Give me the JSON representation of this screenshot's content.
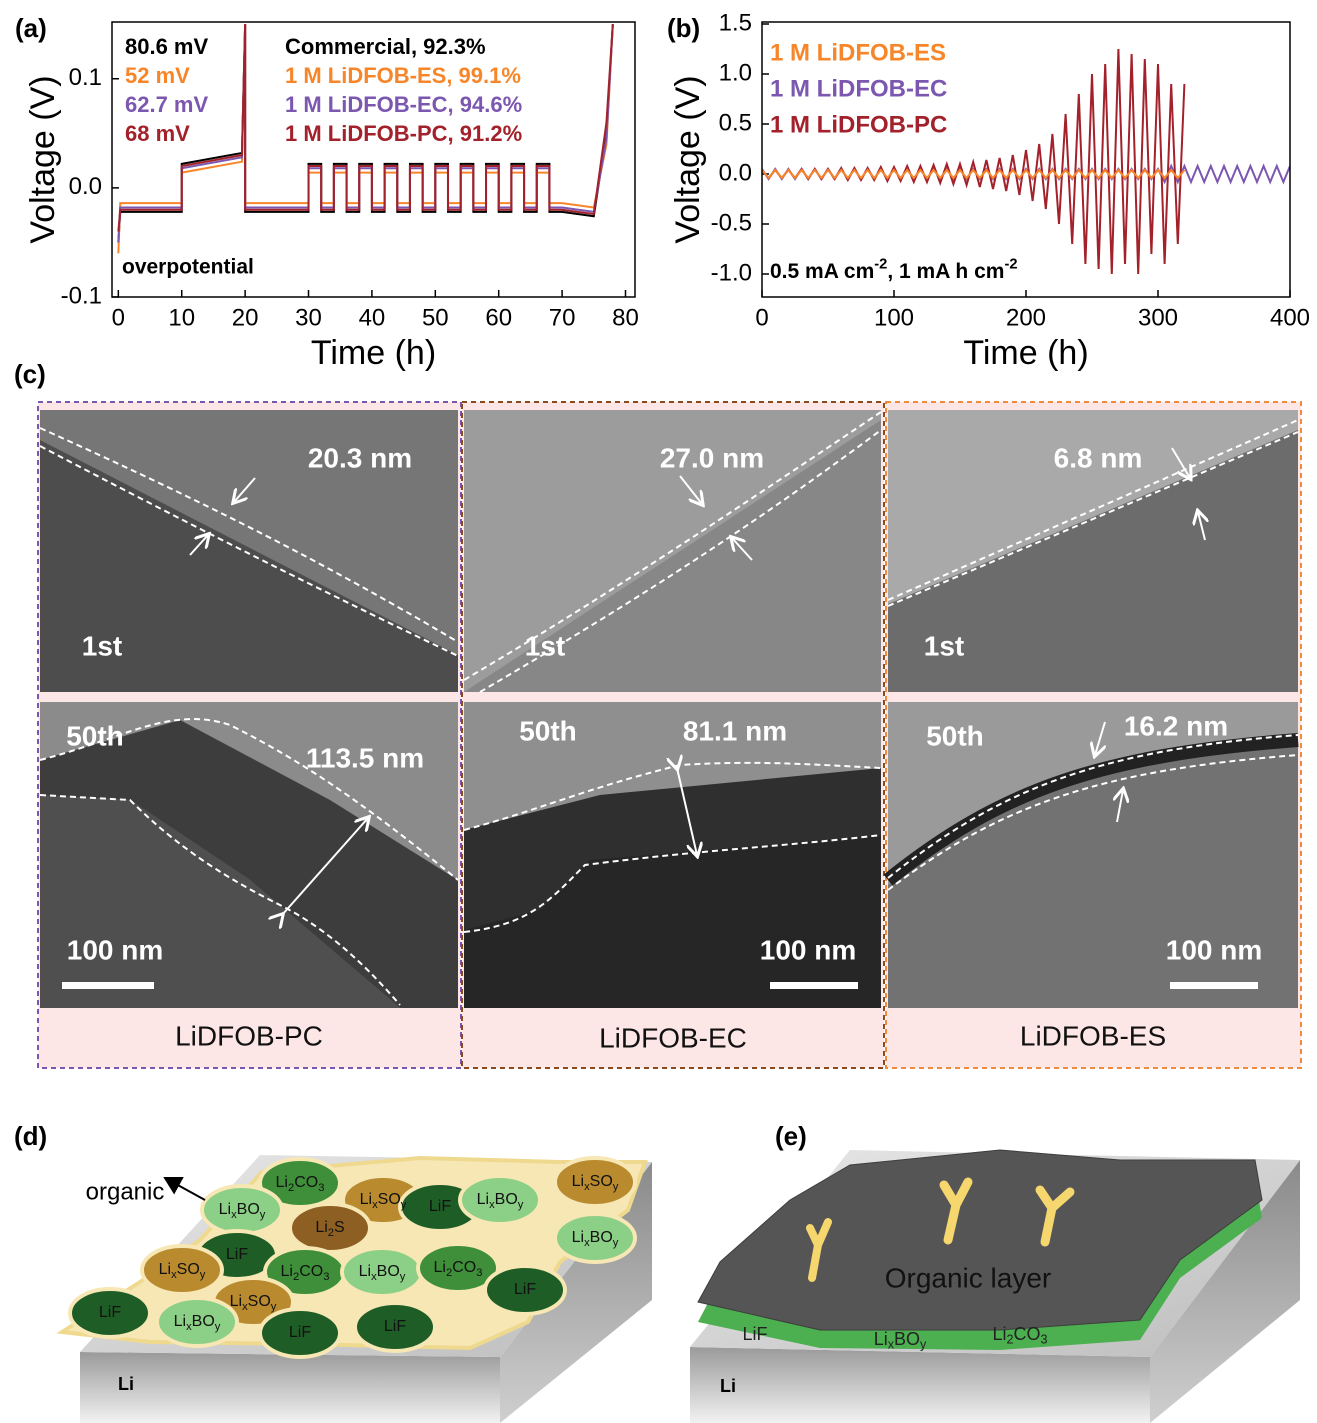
{
  "chart_data": [
    {
      "type": "line",
      "label": "(a)",
      "xlabel": "Time (h)",
      "ylabel": "Voltage (V)",
      "xlim": [
        -1,
        81.5
      ],
      "ylim": [
        -0.1,
        0.152
      ],
      "xticks": [
        0,
        10,
        20,
        30,
        40,
        50,
        60,
        70,
        80
      ],
      "yticks": [
        -0.1,
        {
          "value": 0,
          "label": "0.0"
        },
        0.1
      ],
      "x": [
        0,
        0.3,
        10,
        10,
        19.5,
        20,
        20,
        30,
        30,
        32,
        32,
        34,
        34,
        36,
        36,
        38,
        38,
        40,
        40,
        42,
        42,
        44,
        44,
        46,
        46,
        48,
        48,
        50,
        50,
        52,
        52,
        54,
        54,
        56,
        56,
        58,
        58,
        60,
        60,
        62,
        62,
        64,
        64,
        66,
        66,
        68,
        68,
        70,
        70,
        75,
        77,
        78
      ],
      "series": [
        {
          "name": "Commercial, 92.3%",
          "color": "#000000",
          "values": [
            -0.05,
            -0.022,
            -0.022,
            0.022,
            0.032,
            0.15,
            -0.022,
            -0.022,
            0.022,
            0.022,
            -0.022,
            -0.022,
            0.022,
            0.022,
            -0.022,
            -0.022,
            0.022,
            0.022,
            -0.022,
            -0.022,
            0.022,
            0.022,
            -0.022,
            -0.022,
            0.022,
            0.022,
            -0.022,
            -0.022,
            0.022,
            0.022,
            -0.022,
            -0.022,
            0.022,
            0.022,
            -0.022,
            -0.022,
            0.022,
            0.022,
            -0.022,
            -0.022,
            0.022,
            0.022,
            -0.022,
            -0.022,
            0.022,
            0.022,
            -0.022,
            -0.022,
            -0.022,
            -0.026,
            0.05,
            0.15
          ]
        },
        {
          "name": "1 M LiDFOB-ES, 99.1%",
          "color": "#f7862a",
          "values": [
            -0.06,
            -0.014,
            -0.014,
            0.014,
            0.024,
            0.15,
            -0.014,
            -0.014,
            0.014,
            0.014,
            -0.014,
            -0.014,
            0.014,
            0.014,
            -0.014,
            -0.014,
            0.014,
            0.014,
            -0.014,
            -0.014,
            0.014,
            0.014,
            -0.014,
            -0.014,
            0.014,
            0.014,
            -0.014,
            -0.014,
            0.014,
            0.014,
            -0.014,
            -0.014,
            0.014,
            0.014,
            -0.014,
            -0.014,
            0.014,
            0.014,
            -0.014,
            -0.014,
            0.014,
            0.014,
            -0.014,
            -0.014,
            0.014,
            0.014,
            -0.014,
            -0.014,
            -0.014,
            -0.018,
            0.04,
            0.15
          ]
        },
        {
          "name": "1 M LiDFOB-EC, 94.6%",
          "color": "#7b57b0",
          "values": [
            -0.05,
            -0.018,
            -0.018,
            0.018,
            0.028,
            0.15,
            -0.018,
            -0.018,
            0.018,
            0.018,
            -0.018,
            -0.018,
            0.018,
            0.018,
            -0.018,
            -0.018,
            0.018,
            0.018,
            -0.018,
            -0.018,
            0.018,
            0.018,
            -0.018,
            -0.018,
            0.018,
            0.018,
            -0.018,
            -0.018,
            0.018,
            0.018,
            -0.018,
            -0.018,
            0.018,
            0.018,
            -0.018,
            -0.018,
            0.018,
            0.018,
            -0.018,
            -0.018,
            0.018,
            0.018,
            -0.018,
            -0.018,
            0.018,
            0.018,
            -0.018,
            -0.018,
            -0.018,
            -0.022,
            0.045,
            0.15
          ]
        },
        {
          "name": "1 M LiDFOB-PC, 91.2%",
          "color": "#a3212a",
          "values": [
            -0.04,
            -0.02,
            -0.02,
            0.02,
            0.03,
            0.15,
            -0.02,
            -0.02,
            0.02,
            0.02,
            -0.02,
            -0.02,
            0.02,
            0.02,
            -0.02,
            -0.02,
            0.02,
            0.02,
            -0.02,
            -0.02,
            0.02,
            0.02,
            -0.02,
            -0.02,
            0.02,
            0.02,
            -0.02,
            -0.02,
            0.02,
            0.02,
            -0.02,
            -0.02,
            0.02,
            0.02,
            -0.02,
            -0.02,
            0.02,
            0.02,
            -0.02,
            -0.02,
            0.02,
            0.02,
            -0.02,
            -0.02,
            0.02,
            0.02,
            -0.02,
            -0.02,
            -0.02,
            -0.024,
            0.06,
            0.15
          ]
        }
      ],
      "annotations": [
        {
          "text": "80.6 mV",
          "color": "#000000"
        },
        {
          "text": "52 mV",
          "color": "#f7862a"
        },
        {
          "text": "62.7 mV",
          "color": "#7b57b0"
        },
        {
          "text": "68 mV",
          "color": "#a3212a"
        }
      ],
      "annotation_text": "overpotential"
    },
    {
      "type": "line",
      "label": "(b)",
      "xlabel": "Time (h)",
      "ylabel": "Voltage (V)",
      "xlim": [
        0,
        400
      ],
      "ylim": [
        -1.23,
        1.52
      ],
      "xticks": [
        0,
        100,
        200,
        300,
        400
      ],
      "yticks": [
        {
          "value": -1,
          "label": "-1.0"
        },
        -0.5,
        {
          "value": 0,
          "label": "0.0"
        },
        0.5,
        {
          "value": 1,
          "label": "1.0"
        },
        1.5
      ],
      "x": [
        0,
        5,
        10,
        15,
        20,
        25,
        30,
        35,
        40,
        45,
        50,
        55,
        60,
        65,
        70,
        75,
        80,
        85,
        90,
        95,
        100,
        105,
        110,
        115,
        120,
        125,
        130,
        135,
        140,
        145,
        150,
        155,
        160,
        165,
        170,
        175,
        180,
        185,
        190,
        195,
        200,
        205,
        210,
        215,
        220,
        225,
        230,
        235,
        240,
        245,
        250,
        255,
        260,
        265,
        270,
        275,
        280,
        285,
        290,
        295,
        300,
        305,
        310,
        315,
        320,
        325,
        330,
        335,
        340,
        345,
        350,
        355,
        360,
        365,
        370,
        375,
        380,
        385,
        390,
        395,
        400
      ],
      "series": [
        {
          "name": "1 M LiDFOB-EC",
          "color": "#7b57b0",
          "values": [
            0.05,
            -0.05,
            0.05,
            -0.05,
            0.05,
            -0.05,
            0.05,
            -0.05,
            0.05,
            -0.05,
            0.05,
            -0.05,
            0.05,
            -0.05,
            0.05,
            -0.05,
            0.05,
            -0.05,
            0.05,
            -0.05,
            0.05,
            -0.05,
            0.05,
            -0.05,
            0.05,
            -0.05,
            0.05,
            -0.05,
            0.05,
            -0.05,
            0.05,
            -0.05,
            0.05,
            -0.05,
            0.05,
            -0.05,
            0.05,
            -0.05,
            0.05,
            -0.05,
            0.05,
            -0.05,
            0.05,
            -0.05,
            0.05,
            -0.05,
            0.05,
            -0.05,
            0.05,
            -0.05,
            0.05,
            -0.05,
            0.05,
            -0.05,
            0.05,
            -0.05,
            0.05,
            -0.05,
            0.05,
            -0.05,
            0.05,
            -0.08,
            0.08,
            -0.08,
            0.08,
            -0.08,
            0.08,
            -0.08,
            0.08,
            -0.08,
            0.08,
            -0.08,
            0.08,
            -0.08,
            0.08,
            -0.08,
            0.08,
            -0.08,
            0.08,
            -0.08,
            0.08
          ]
        },
        {
          "name": "1 M LiDFOB-PC",
          "color": "#a3212a",
          "values": [
            0.04,
            -0.04,
            0.04,
            -0.04,
            0.04,
            -0.04,
            0.05,
            -0.05,
            0.05,
            -0.05,
            0.05,
            -0.05,
            0.06,
            -0.06,
            0.06,
            -0.06,
            0.06,
            -0.06,
            0.07,
            -0.07,
            0.07,
            -0.07,
            0.08,
            -0.08,
            0.08,
            -0.08,
            0.09,
            -0.09,
            0.1,
            -0.1,
            0.1,
            -0.11,
            0.12,
            -0.13,
            0.14,
            -0.15,
            0.16,
            -0.17,
            0.19,
            -0.21,
            0.24,
            -0.27,
            0.3,
            -0.35,
            0.4,
            -0.5,
            0.6,
            -0.7,
            0.8,
            -0.9,
            1.0,
            -0.95,
            1.1,
            -1.0,
            1.25,
            -0.9,
            1.2,
            -1.0,
            1.15,
            -0.8,
            1.1,
            -0.9,
            0.9,
            -0.7,
            0.9,
            null,
            null,
            null,
            null,
            null,
            null,
            null,
            null,
            null,
            null,
            null,
            null,
            null,
            null,
            null,
            null
          ]
        },
        {
          "name": "1 M LiDFOB-ES",
          "color": "#f7862a",
          "values": [
            0.04,
            -0.04,
            0.04,
            -0.04,
            0.04,
            -0.04,
            0.04,
            -0.04,
            0.04,
            -0.04,
            0.04,
            -0.04,
            0.04,
            -0.04,
            0.04,
            -0.04,
            0.04,
            -0.04,
            0.04,
            -0.04,
            0.04,
            -0.04,
            0.04,
            -0.04,
            0.04,
            -0.04,
            0.04,
            -0.04,
            0.04,
            -0.04,
            0.04,
            -0.04,
            0.04,
            -0.04,
            0.04,
            -0.04,
            0.04,
            -0.04,
            0.04,
            -0.04,
            0.04,
            -0.04,
            0.04,
            -0.04,
            0.04,
            -0.04,
            0.04,
            -0.04,
            0.04,
            -0.04,
            0.04,
            -0.04,
            0.04,
            -0.04,
            0.04,
            -0.04,
            0.04,
            -0.04,
            0.04,
            -0.04,
            0.04,
            -0.04,
            0.04,
            -0.04,
            0.04,
            null,
            null,
            null,
            null,
            null,
            null,
            null,
            null,
            null,
            null,
            null,
            null,
            null,
            null,
            null,
            null
          ]
        }
      ],
      "legend_order": [
        2,
        0,
        1
      ],
      "annotation_parts": [
        "0.5 mA cm",
        "-2",
        ", 1 mA h cm",
        "-2"
      ]
    }
  ],
  "panel_c": {
    "label": "(c)",
    "cycles": [
      "1st",
      "50th"
    ],
    "scale_bar": "100 nm",
    "samples": [
      {
        "name": "LiDFOB-PC",
        "thickness_1st": "20.3 nm",
        "thickness_50th": "113.5 nm"
      },
      {
        "name": "LiDFOB-EC",
        "thickness_1st": "27.0 nm",
        "thickness_50th": "81.1 nm"
      },
      {
        "name": "LiDFOB-ES",
        "thickness_1st": "6.8 nm",
        "thickness_50th": "16.2 nm"
      }
    ]
  },
  "panel_d": {
    "label": "(d)",
    "organic": "organic",
    "substrate": "Li",
    "cells": [
      [
        "Li",
        "2",
        "CO",
        "3"
      ],
      [
        "Li",
        "x",
        "SO",
        "y"
      ],
      [
        "LiF"
      ],
      [
        "Li",
        "x",
        "BO",
        "y"
      ],
      [
        "Li",
        "x",
        "SO",
        "y"
      ],
      [
        "Li",
        "x",
        "BO",
        "y"
      ],
      [
        "Li",
        "2",
        "S"
      ],
      [
        "LiF"
      ],
      [
        "Li",
        "x",
        "SO",
        "y"
      ],
      [
        "Li",
        "2",
        "CO",
        "3"
      ],
      [
        "Li",
        "x",
        "BO",
        "y"
      ],
      [
        "Li",
        "2",
        "CO",
        "3"
      ],
      [
        "Li",
        "x",
        "BO",
        "y"
      ],
      [
        "LiF"
      ],
      [
        "Li",
        "x",
        "SO",
        "y"
      ],
      [
        "LiF"
      ],
      [
        "Li",
        "x",
        "BO",
        "y"
      ],
      [
        "LiF"
      ],
      [
        "LiF"
      ]
    ]
  },
  "panel_e": {
    "label": "(e)",
    "layer": "Organic layer",
    "substrate": "Li",
    "components": [
      [
        "LiF"
      ],
      [
        "Li",
        "x",
        "BO",
        "y"
      ],
      [
        "Li",
        "2",
        "CO",
        "3"
      ]
    ]
  }
}
